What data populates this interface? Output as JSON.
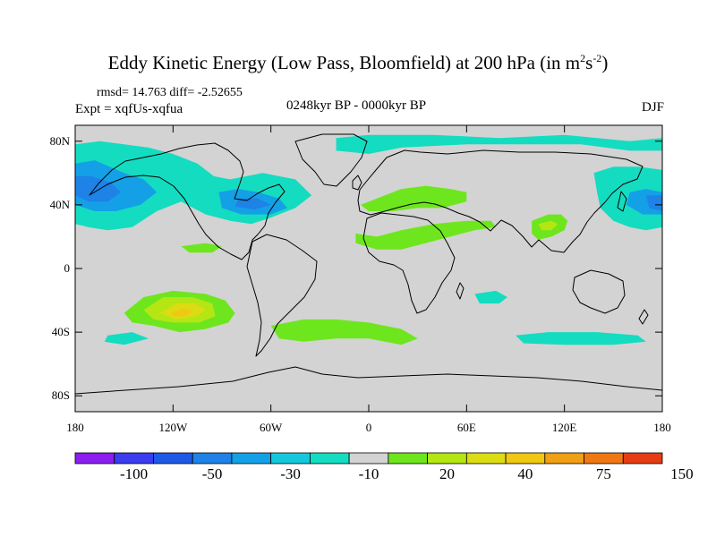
{
  "header": {
    "title_main": "Eddy Kinetic Energy (Low Pass, Bloomfield) at 200 hPa (in m",
    "title_sup1": "2",
    "title_mid": "s",
    "title_sup2": "-2",
    "title_end": ")",
    "stats": "rmsd= 14.763 diff= -2.52655",
    "expt": "Expt = xqfUs-xqfua",
    "period": "0248kyr BP - 0000kyr BP",
    "season": "DJF"
  },
  "chart_data": {
    "type": "heatmap",
    "title": "Eddy Kinetic Energy (Low Pass, Bloomfield) at 200 hPa (in m^2 s^-2)",
    "projection": "cylindrical equidistant",
    "xlim": [
      -180,
      180
    ],
    "ylim": [
      -90,
      90
    ],
    "x_ticks": [
      {
        "value": -180,
        "label": "180"
      },
      {
        "value": -120,
        "label": "120W"
      },
      {
        "value": -60,
        "label": "60W"
      },
      {
        "value": 0,
        "label": "0"
      },
      {
        "value": 60,
        "label": "60E"
      },
      {
        "value": 120,
        "label": "120E"
      },
      {
        "value": 180,
        "label": "180"
      }
    ],
    "y_ticks": [
      {
        "value": 80,
        "label": "80N"
      },
      {
        "value": 40,
        "label": "40N"
      },
      {
        "value": 0,
        "label": "0"
      },
      {
        "value": -40,
        "label": "40S"
      },
      {
        "value": -80,
        "label": "80S"
      }
    ],
    "background_color": "#d3d3d3",
    "colorbar": {
      "colors": [
        "#8c1ef0",
        "#3c3cf0",
        "#1e5ae6",
        "#1e82e6",
        "#14a0e6",
        "#14c8dc",
        "#14dcc0",
        "#d3d3d3",
        "#6ee61e",
        "#b4e614",
        "#dcdc14",
        "#f0c814",
        "#f0a014",
        "#f07814",
        "#e63c14"
      ],
      "labels": [
        {
          "after_box": 2,
          "text": "-100"
        },
        {
          "after_box": 4,
          "text": "-50"
        },
        {
          "after_box": 6,
          "text": "-30"
        },
        {
          "after_box": 8,
          "text": "-10"
        },
        {
          "after_box": 10,
          "text": "20"
        },
        {
          "after_box": 12,
          "text": "40"
        },
        {
          "after_box": 14,
          "text": "75"
        },
        {
          "after_box": 16,
          "text": "150"
        }
      ]
    },
    "anomaly_regions": [
      {
        "name": "north-pacific-negative-outer",
        "level": -10,
        "color": "#14dcc0",
        "points": [
          [
            -180,
            78
          ],
          [
            -165,
            80
          ],
          [
            -150,
            78
          ],
          [
            -135,
            76
          ],
          [
            -120,
            72
          ],
          [
            -105,
            66
          ],
          [
            -95,
            58
          ],
          [
            -85,
            56
          ],
          [
            -75,
            58
          ],
          [
            -65,
            60
          ],
          [
            -55,
            58
          ],
          [
            -45,
            56
          ],
          [
            -35,
            46
          ],
          [
            -45,
            38
          ],
          [
            -60,
            32
          ],
          [
            -72,
            28
          ],
          [
            -85,
            30
          ],
          [
            -100,
            34
          ],
          [
            -115,
            42
          ],
          [
            -130,
            36
          ],
          [
            -145,
            26
          ],
          [
            -160,
            24
          ],
          [
            -172,
            26
          ],
          [
            -180,
            28
          ]
        ]
      },
      {
        "name": "north-pacific-negative-mid",
        "level": -30,
        "color": "#14a0e6",
        "points": [
          [
            -180,
            66
          ],
          [
            -168,
            68
          ],
          [
            -150,
            60
          ],
          [
            -138,
            56
          ],
          [
            -130,
            48
          ],
          [
            -140,
            40
          ],
          [
            -155,
            36
          ],
          [
            -168,
            36
          ],
          [
            -180,
            40
          ]
        ]
      },
      {
        "name": "north-pacific-negative-core",
        "level": -50,
        "color": "#1e82e6",
        "points": [
          [
            -180,
            58
          ],
          [
            -170,
            58
          ],
          [
            -158,
            54
          ],
          [
            -152,
            48
          ],
          [
            -160,
            42
          ],
          [
            -172,
            42
          ],
          [
            -180,
            46
          ]
        ]
      },
      {
        "name": "north-atlantic-negative",
        "level": -30,
        "color": "#14a0e6",
        "points": [
          [
            -92,
            48
          ],
          [
            -80,
            50
          ],
          [
            -68,
            48
          ],
          [
            -55,
            44
          ],
          [
            -50,
            38
          ],
          [
            -60,
            34
          ],
          [
            -78,
            34
          ],
          [
            -90,
            38
          ]
        ]
      },
      {
        "name": "north-atlantic-negative-core",
        "level": -50,
        "color": "#1e82e6",
        "points": [
          [
            -80,
            44
          ],
          [
            -68,
            44
          ],
          [
            -60,
            40
          ],
          [
            -70,
            37
          ],
          [
            -82,
            39
          ]
        ]
      },
      {
        "name": "arctic-negative-strip",
        "level": -10,
        "color": "#14dcc0",
        "points": [
          [
            -20,
            82
          ],
          [
            0,
            84
          ],
          [
            40,
            84
          ],
          [
            80,
            82
          ],
          [
            120,
            84
          ],
          [
            160,
            80
          ],
          [
            180,
            82
          ],
          [
            180,
            74
          ],
          [
            160,
            74
          ],
          [
            130,
            78
          ],
          [
            100,
            78
          ],
          [
            60,
            78
          ],
          [
            20,
            76
          ],
          [
            0,
            72
          ],
          [
            -20,
            74
          ]
        ]
      },
      {
        "name": "west-pacific-negative",
        "level": -10,
        "color": "#14dcc0",
        "points": [
          [
            138,
            60
          ],
          [
            150,
            64
          ],
          [
            165,
            64
          ],
          [
            180,
            62
          ],
          [
            180,
            26
          ],
          [
            170,
            24
          ],
          [
            160,
            26
          ],
          [
            150,
            30
          ],
          [
            142,
            38
          ],
          [
            140,
            48
          ]
        ]
      },
      {
        "name": "west-pacific-negative-mid",
        "level": -30,
        "color": "#14a0e6",
        "points": [
          [
            160,
            48
          ],
          [
            170,
            50
          ],
          [
            180,
            48
          ],
          [
            180,
            34
          ],
          [
            168,
            34
          ],
          [
            158,
            40
          ]
        ]
      },
      {
        "name": "west-pacific-negative-core",
        "level": -50,
        "color": "#1e82e6",
        "points": [
          [
            170,
            46
          ],
          [
            180,
            46
          ],
          [
            180,
            36
          ],
          [
            172,
            38
          ]
        ]
      },
      {
        "name": "europe-positive",
        "level": 20,
        "color": "#6ee61e",
        "points": [
          [
            -5,
            40
          ],
          [
            5,
            44
          ],
          [
            20,
            50
          ],
          [
            35,
            52
          ],
          [
            50,
            50
          ],
          [
            60,
            48
          ],
          [
            60,
            42
          ],
          [
            45,
            38
          ],
          [
            30,
            38
          ],
          [
            15,
            36
          ],
          [
            0,
            36
          ]
        ]
      },
      {
        "name": "north-africa-positive",
        "level": 20,
        "color": "#6ee61e",
        "points": [
          [
            -8,
            22
          ],
          [
            5,
            20
          ],
          [
            20,
            24
          ],
          [
            40,
            28
          ],
          [
            60,
            30
          ],
          [
            75,
            30
          ],
          [
            78,
            26
          ],
          [
            65,
            24
          ],
          [
            50,
            20
          ],
          [
            35,
            16
          ],
          [
            20,
            12
          ],
          [
            5,
            12
          ],
          [
            -8,
            16
          ]
        ]
      },
      {
        "name": "tibet-positive",
        "level": 20,
        "color": "#6ee61e",
        "points": [
          [
            100,
            30
          ],
          [
            110,
            34
          ],
          [
            118,
            34
          ],
          [
            122,
            30
          ],
          [
            120,
            24
          ],
          [
            112,
            20
          ],
          [
            104,
            18
          ],
          [
            100,
            22
          ]
        ]
      },
      {
        "name": "tibet-positive-core",
        "level": 40,
        "color": "#b4e614",
        "points": [
          [
            104,
            28
          ],
          [
            112,
            30
          ],
          [
            116,
            28
          ],
          [
            112,
            24
          ],
          [
            106,
            24
          ]
        ]
      },
      {
        "name": "south-pacific-positive",
        "level": 20,
        "color": "#6ee61e",
        "points": [
          [
            -150,
            -28
          ],
          [
            -138,
            -18
          ],
          [
            -120,
            -14
          ],
          [
            -100,
            -16
          ],
          [
            -88,
            -20
          ],
          [
            -82,
            -28
          ],
          [
            -86,
            -34
          ],
          [
            -100,
            -38
          ],
          [
            -116,
            -40
          ],
          [
            -132,
            -36
          ],
          [
            -145,
            -34
          ]
        ]
      },
      {
        "name": "south-pacific-positive-mid",
        "level": 40,
        "color": "#b4e614",
        "points": [
          [
            -138,
            -26
          ],
          [
            -126,
            -18
          ],
          [
            -108,
            -18
          ],
          [
            -96,
            -22
          ],
          [
            -94,
            -30
          ],
          [
            -104,
            -34
          ],
          [
            -120,
            -34
          ],
          [
            -132,
            -32
          ]
        ]
      },
      {
        "name": "south-pacific-positive-core",
        "level": 75,
        "color": "#dcdc14",
        "points": [
          [
            -128,
            -28
          ],
          [
            -118,
            -22
          ],
          [
            -106,
            -22
          ],
          [
            -100,
            -26
          ],
          [
            -106,
            -30
          ],
          [
            -118,
            -32
          ]
        ]
      },
      {
        "name": "south-pacific-positive-peak",
        "level": 150,
        "color": "#f0c814",
        "points": [
          [
            -122,
            -28
          ],
          [
            -114,
            -25
          ],
          [
            -108,
            -27
          ],
          [
            -112,
            -30
          ],
          [
            -120,
            -30
          ]
        ]
      },
      {
        "name": "south-atlantic-positive",
        "level": 20,
        "color": "#6ee61e",
        "points": [
          [
            -60,
            -36
          ],
          [
            -40,
            -32
          ],
          [
            -20,
            -32
          ],
          [
            0,
            -34
          ],
          [
            20,
            -38
          ],
          [
            30,
            -44
          ],
          [
            20,
            -48
          ],
          [
            0,
            -44
          ],
          [
            -20,
            -44
          ],
          [
            -40,
            -46
          ],
          [
            -55,
            -44
          ]
        ]
      },
      {
        "name": "southern-ocean-negative",
        "level": -10,
        "color": "#14dcc0",
        "points": [
          [
            90,
            -42
          ],
          [
            110,
            -40
          ],
          [
            140,
            -40
          ],
          [
            165,
            -42
          ],
          [
            170,
            -46
          ],
          [
            150,
            -48
          ],
          [
            120,
            -48
          ],
          [
            95,
            -47
          ]
        ]
      },
      {
        "name": "south-indian-negative",
        "level": -10,
        "color": "#14dcc0",
        "points": [
          [
            65,
            -16
          ],
          [
            78,
            -14
          ],
          [
            85,
            -18
          ],
          [
            80,
            -22
          ],
          [
            68,
            -22
          ]
        ]
      },
      {
        "name": "tropical-pacific-positive",
        "level": 20,
        "color": "#6ee61e",
        "points": [
          [
            -115,
            14
          ],
          [
            -100,
            16
          ],
          [
            -90,
            14
          ],
          [
            -96,
            10
          ],
          [
            -110,
            10
          ]
        ]
      },
      {
        "name": "pacific-small-negative",
        "level": -10,
        "color": "#14dcc0",
        "points": [
          [
            -160,
            -42
          ],
          [
            -145,
            -40
          ],
          [
            -135,
            -44
          ],
          [
            -150,
            -48
          ],
          [
            -162,
            -46
          ]
        ]
      }
    ]
  }
}
